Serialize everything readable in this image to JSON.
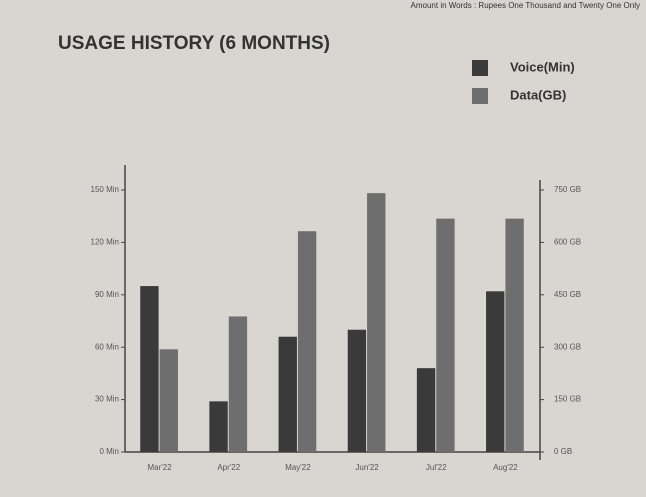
{
  "header_note": "Amount in Words : Rupees One Thousand and Twenty One Only",
  "chart_data": {
    "type": "bar",
    "title": "USAGE HISTORY (6 MONTHS)",
    "categories": [
      "Mar'22",
      "Apr'22",
      "May'22",
      "Jun'22",
      "Jul'22",
      "Aug'22"
    ],
    "series": [
      {
        "name": "Voice(Min)",
        "color": "#3a3a3a",
        "values": [
          95,
          29,
          66,
          70,
          48,
          92
        ]
      },
      {
        "name": "Data(GB)",
        "color": "#6e6e6e",
        "axis": "y2",
        "values": [
          294,
          388,
          632,
          741,
          668,
          668
        ]
      }
    ],
    "ylim": [
      0,
      150
    ],
    "yticks": [
      {
        "value": 0,
        "label": "0 Min"
      },
      {
        "value": 30,
        "label": "30 Min"
      },
      {
        "value": 60,
        "label": "60 Min"
      },
      {
        "value": 90,
        "label": "90 Min"
      },
      {
        "value": 120,
        "label": "120 Min"
      },
      {
        "value": 150,
        "label": "150 Min"
      }
    ],
    "y2lim": [
      0,
      750
    ],
    "y2ticks": [
      {
        "value": 0,
        "label": "0 GB"
      },
      {
        "value": 150,
        "label": "150 GB"
      },
      {
        "value": 300,
        "label": "300 GB"
      },
      {
        "value": 450,
        "label": "450 GB"
      },
      {
        "value": 600,
        "label": "600 GB"
      },
      {
        "value": 750,
        "label": "750 GB"
      }
    ],
    "legend": "top-right"
  }
}
